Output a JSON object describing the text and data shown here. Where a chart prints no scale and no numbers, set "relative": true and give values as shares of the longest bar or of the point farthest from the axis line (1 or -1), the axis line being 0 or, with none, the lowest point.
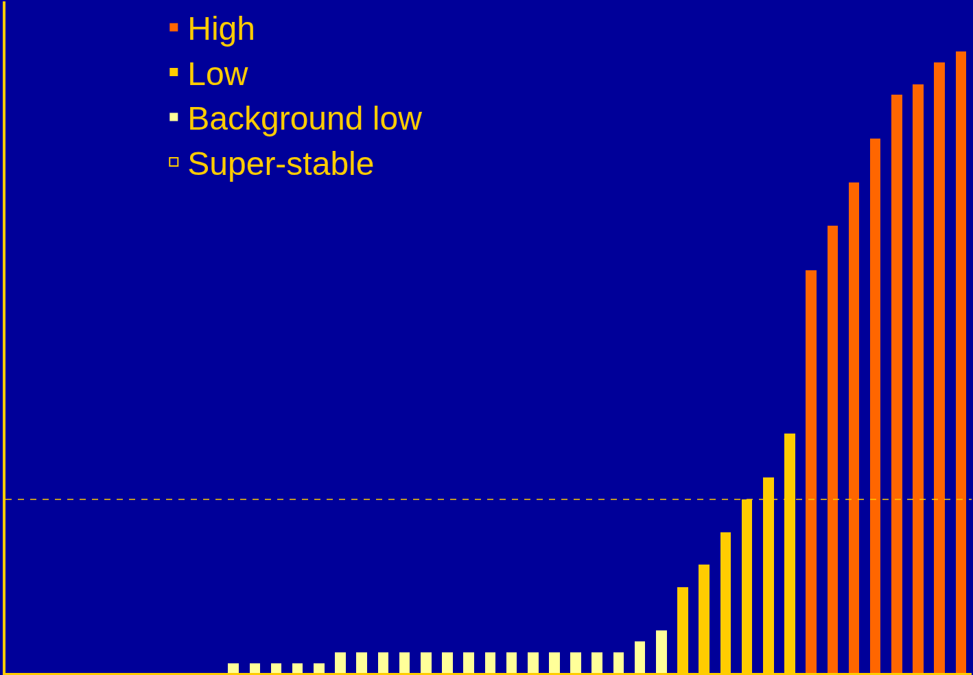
{
  "chart_data": {
    "type": "bar",
    "relative": true,
    "categories": [
      null,
      null,
      null,
      null,
      null,
      null,
      null,
      null,
      null,
      null,
      null,
      null,
      null,
      null,
      null,
      null,
      null,
      null,
      null,
      null,
      null,
      null,
      null,
      null,
      null,
      null,
      null,
      null,
      null,
      null,
      null,
      null,
      null,
      null,
      null
    ],
    "series": [
      {
        "name": "High",
        "color": "#ff6600",
        "values": [
          null,
          null,
          null,
          null,
          null,
          null,
          null,
          null,
          null,
          null,
          null,
          null,
          null,
          null,
          null,
          null,
          null,
          null,
          null,
          null,
          null,
          null,
          null,
          null,
          null,
          null,
          null,
          0.648,
          0.719,
          0.789,
          0.859,
          0.93,
          0.947,
          0.982,
          1
        ]
      },
      {
        "name": "Low",
        "color": "#ffcc00",
        "values": [
          null,
          null,
          null,
          null,
          null,
          null,
          null,
          null,
          null,
          null,
          null,
          null,
          null,
          null,
          null,
          null,
          null,
          null,
          null,
          null,
          null,
          0.138,
          0.174,
          0.226,
          0.279,
          0.314,
          0.385,
          null,
          null,
          null,
          null,
          null,
          null,
          null,
          null
        ]
      },
      {
        "name": "Background low",
        "color": "#ffff99",
        "values": [
          0.015,
          0.015,
          0.015,
          0.015,
          0.015,
          0.033,
          0.033,
          0.033,
          0.033,
          0.033,
          0.033,
          0.033,
          0.033,
          0.033,
          0.033,
          0.033,
          0.033,
          0.033,
          0.033,
          0.051,
          0.068,
          null,
          null,
          null,
          null,
          null,
          null,
          null,
          null,
          null,
          null,
          null,
          null,
          null,
          null
        ]
      },
      {
        "name": "Super-stable",
        "color": "#ffcc00",
        "values": [
          null,
          null,
          null,
          null,
          null,
          null,
          null,
          null,
          null,
          null,
          null,
          null,
          null,
          null,
          null,
          null,
          null,
          null,
          null,
          null,
          null,
          null,
          null,
          null,
          null,
          null,
          null,
          null,
          null,
          null,
          null,
          null,
          null,
          null,
          null
        ]
      }
    ],
    "ref_lines": [
      {
        "axis": "y",
        "value": 0.279,
        "color": "#ffcc00",
        "line_style": "dashed"
      }
    ],
    "stacked": true,
    "legend": "top left",
    "grid": false
  }
}
